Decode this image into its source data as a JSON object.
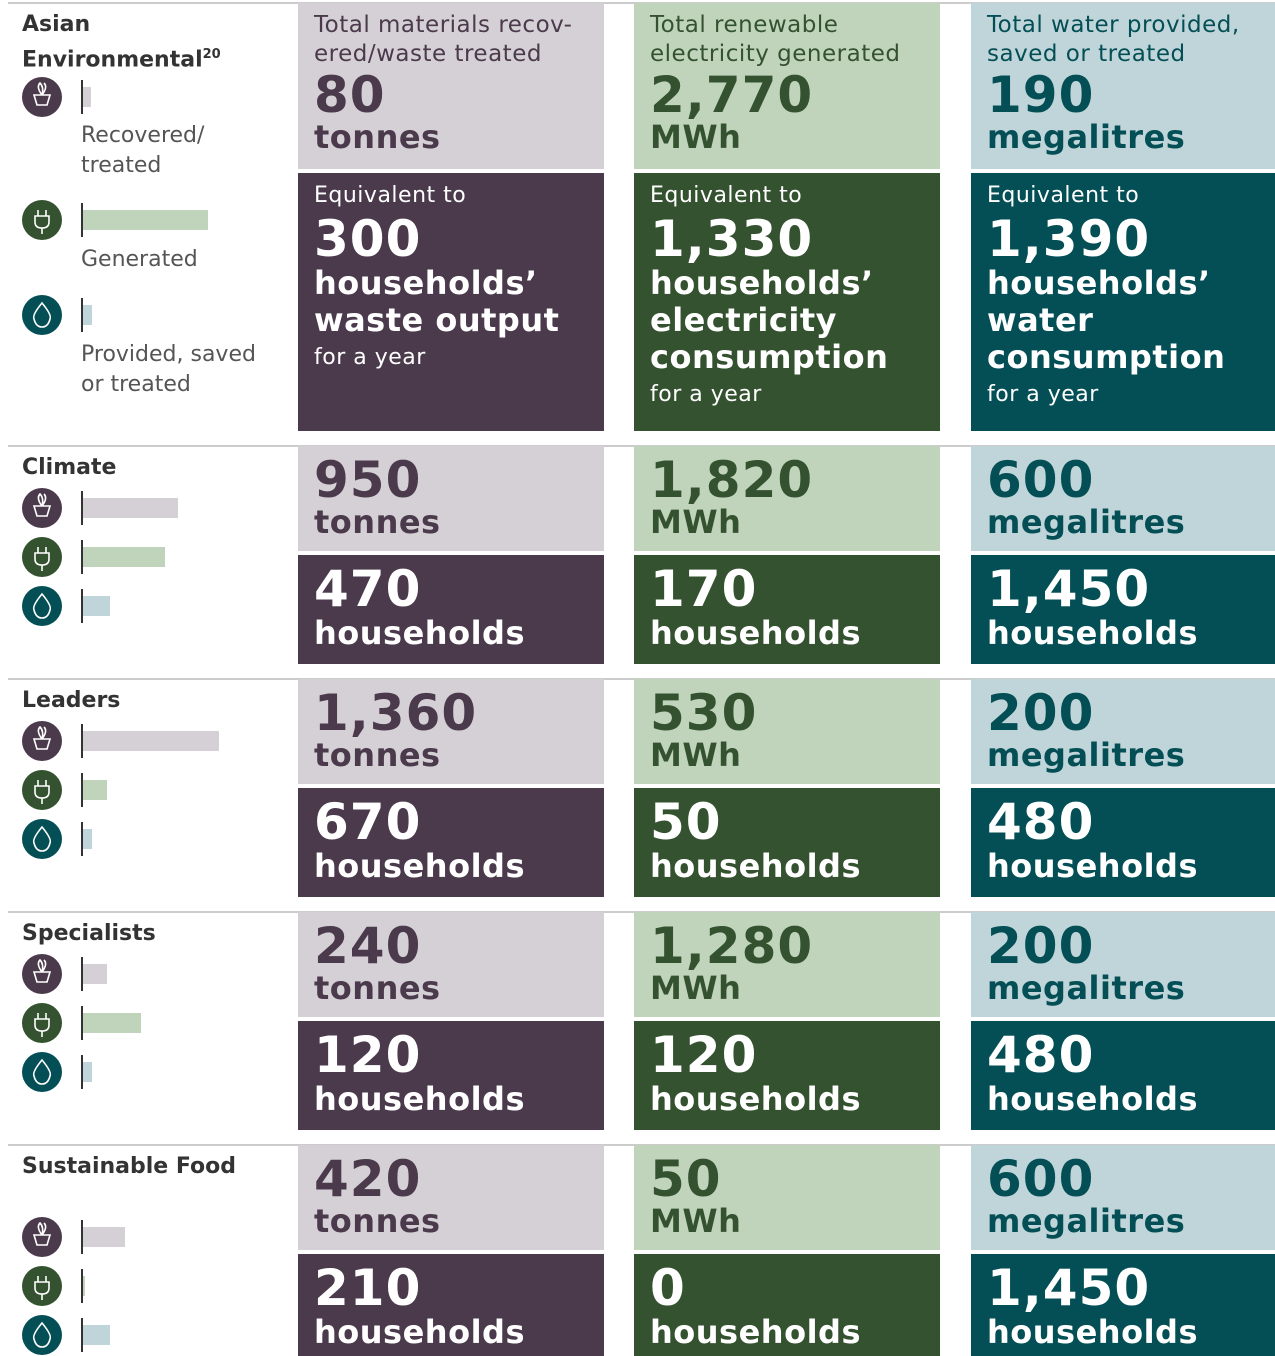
{
  "header": {
    "columns": [
      "Total materials recov-ered/waste treated",
      "Total renewable electricity generated",
      "Total water provided, saved or treated"
    ]
  },
  "legend": [
    "Recovered/ treated",
    "Generated",
    "Provided, saved or treated"
  ],
  "equivalent_label": "Equivalent to",
  "period_label": "for a year",
  "first_row_household_labels": [
    "households’ waste output",
    "households’ electricity consumption",
    "households’ water consumption"
  ],
  "funds": [
    {
      "name": "Asian Environmental",
      "footnote": "20",
      "metrics": [
        {
          "amount": 80,
          "unit": "tonnes",
          "households": "300"
        },
        {
          "amount": 2770,
          "amount_label": "2,770",
          "unit": "MWh",
          "households": "1,330"
        },
        {
          "amount": 190,
          "unit": "megalitres",
          "households": "1,390"
        }
      ]
    },
    {
      "name": "Climate",
      "metrics": [
        {
          "amount": 950,
          "unit": "tonnes",
          "households": "470",
          "households_label": "households"
        },
        {
          "amount": 1820,
          "amount_label": "1,820",
          "unit": "MWh",
          "households": "170",
          "households_label": "households"
        },
        {
          "amount": 600,
          "unit": "megalitres",
          "households": "1,450",
          "households_label": "households"
        }
      ]
    },
    {
      "name": "Leaders",
      "metrics": [
        {
          "amount": 1360,
          "amount_label": "1,360",
          "unit": "tonnes",
          "households": "670",
          "households_label": "households"
        },
        {
          "amount": 530,
          "unit": "MWh",
          "households": "50",
          "households_label": "households"
        },
        {
          "amount": 200,
          "unit": "megalitres",
          "households": "480",
          "households_label": "households"
        }
      ]
    },
    {
      "name": "Specialists",
      "metrics": [
        {
          "amount": 240,
          "unit": "tonnes",
          "households": "120",
          "households_label": "households"
        },
        {
          "amount": 1280,
          "amount_label": "1,280",
          "unit": "MWh",
          "households": "120",
          "households_label": "households"
        },
        {
          "amount": 200,
          "unit": "megalitres",
          "households": "480",
          "households_label": "households"
        }
      ]
    },
    {
      "name": "Sustainable Food",
      "metrics": [
        {
          "amount": 420,
          "unit": "tonnes",
          "households": "210",
          "households_label": "households"
        },
        {
          "amount": 50,
          "unit": "MWh",
          "households": "0",
          "households_label": "households"
        },
        {
          "amount": 600,
          "unit": "megalitres",
          "households": "1,450",
          "households_label": "households"
        }
      ]
    }
  ]
}
